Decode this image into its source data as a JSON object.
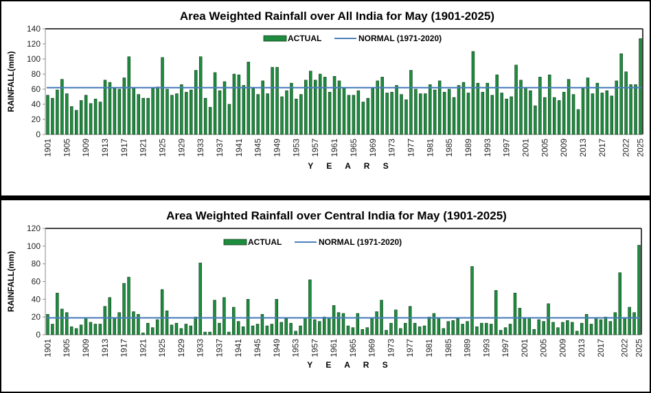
{
  "chart_data": [
    {
      "type": "bar",
      "title": "Area Weighted Rainfall over All India  for  May (1901-2025)",
      "xlabel": "Y E A R S",
      "ylabel": "RAINFALL(mm)",
      "ylim": [
        0,
        140
      ],
      "yticks": [
        0,
        20,
        40,
        60,
        80,
        100,
        120,
        140
      ],
      "xtick_labels": [
        "1901",
        "1905",
        "1909",
        "1913",
        "1917",
        "1921",
        "1925",
        "1929",
        "1933",
        "1937",
        "1941",
        "1945",
        "1949",
        "1953",
        "1957",
        "1961",
        "1965",
        "1969",
        "1973",
        "1977",
        "1981",
        "1985",
        "1989",
        "1993",
        "1997",
        "2001",
        "2005",
        "2009",
        "2013",
        "2017",
        "2022",
        "2025"
      ],
      "legend": {
        "position": "top-center",
        "actual_label": "ACTUAL",
        "normal_label": "NORMAL (1971-2020)"
      },
      "normal": 62,
      "x_start": 1901,
      "series": [
        {
          "name": "ACTUAL",
          "color": "#1e8c3e",
          "values": [
            52,
            48,
            59,
            73,
            54,
            37,
            32,
            45,
            52,
            41,
            47,
            43,
            72,
            69,
            61,
            60,
            75,
            103,
            61,
            53,
            48,
            48,
            61,
            63,
            102,
            60,
            52,
            54,
            66,
            56,
            59,
            85,
            103,
            48,
            36,
            82,
            58,
            70,
            40,
            80,
            79,
            65,
            96,
            61,
            53,
            71,
            54,
            89,
            89,
            50,
            58,
            68,
            47,
            53,
            72,
            84,
            72,
            80,
            76,
            56,
            77,
            71,
            61,
            52,
            52,
            58,
            43,
            48,
            61,
            71,
            76,
            55,
            56,
            65,
            53,
            46,
            85,
            60,
            54,
            54,
            66,
            59,
            71,
            56,
            60,
            49,
            65,
            69,
            55,
            110,
            68,
            56,
            68,
            52,
            79,
            55,
            47,
            50,
            92,
            72,
            62,
            58,
            38,
            76,
            49,
            79,
            49,
            45,
            56,
            73,
            53,
            33,
            61,
            75,
            54,
            68,
            55,
            58,
            51,
            71,
            107,
            83,
            66,
            66,
            127
          ]
        }
      ]
    },
    {
      "type": "bar",
      "title": "Area Weighted Rainfall over  Central India  for  May  (1901-2025)",
      "xlabel": "Y E A R S",
      "ylabel": "RAINFALL(mm)",
      "ylim": [
        0,
        120
      ],
      "yticks": [
        0,
        20,
        40,
        60,
        80,
        100,
        120
      ],
      "xtick_labels": [
        "1901",
        "1905",
        "1909",
        "1913",
        "1917",
        "1921",
        "1925",
        "1929",
        "1933",
        "1937",
        "1941",
        "1945",
        "1949",
        "1953",
        "1957",
        "1961",
        "1965",
        "1969",
        "1973",
        "1977",
        "1981",
        "1985",
        "1989",
        "1993",
        "1997",
        "2001",
        "2005",
        "2009",
        "2013",
        "2017",
        "2022",
        "2025"
      ],
      "legend": {
        "position": "top-center",
        "actual_label": "ACTUAL",
        "normal_label": "NORMAL (1971-2020)"
      },
      "normal": 19,
      "x_start": 1901,
      "series": [
        {
          "name": "ACTUAL",
          "color": "#1e8c3e",
          "values": [
            23,
            12,
            47,
            29,
            25,
            9,
            7,
            11,
            19,
            14,
            12,
            12,
            32,
            42,
            19,
            25,
            58,
            65,
            26,
            23,
            2,
            13,
            8,
            17,
            51,
            27,
            11,
            13,
            7,
            12,
            10,
            20,
            81,
            3,
            3,
            39,
            13,
            42,
            3,
            31,
            15,
            9,
            40,
            10,
            12,
            23,
            10,
            12,
            40,
            14,
            18,
            13,
            4,
            10,
            19,
            62,
            17,
            15,
            20,
            19,
            33,
            25,
            24,
            10,
            8,
            24,
            6,
            8,
            19,
            26,
            39,
            5,
            13,
            28,
            7,
            13,
            32,
            13,
            9,
            10,
            20,
            24,
            19,
            7,
            15,
            16,
            18,
            12,
            15,
            77,
            9,
            13,
            13,
            12,
            50,
            5,
            8,
            12,
            47,
            30,
            19,
            19,
            6,
            17,
            15,
            35,
            14,
            8,
            14,
            16,
            14,
            4,
            13,
            23,
            12,
            19,
            17,
            20,
            15,
            25,
            70,
            19,
            31,
            25,
            101
          ]
        }
      ]
    }
  ]
}
